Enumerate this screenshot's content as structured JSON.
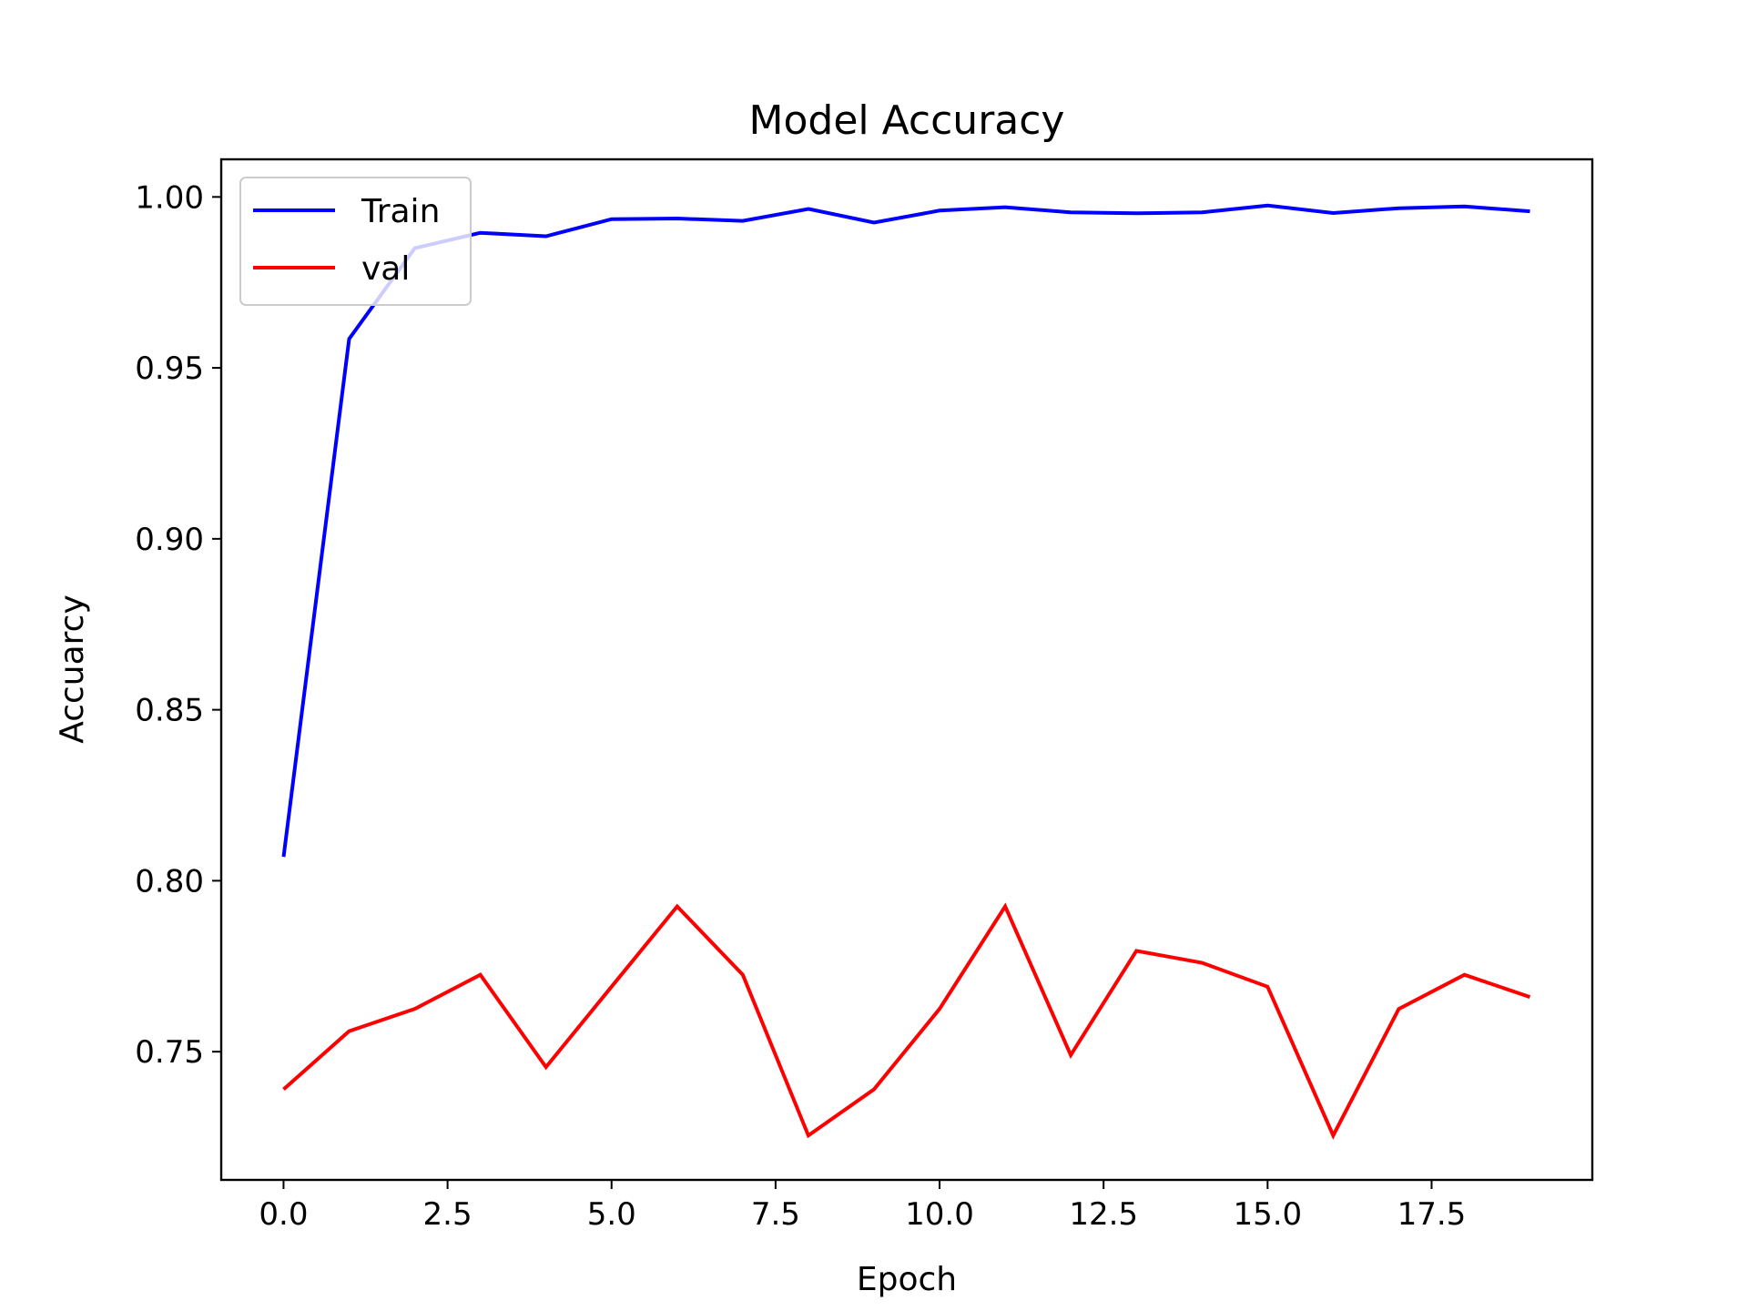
{
  "chart_data": {
    "type": "line",
    "title": "Model Accuracy",
    "xlabel": "Epoch",
    "ylabel": "Accuarcy",
    "x": [
      0,
      1,
      2,
      3,
      4,
      5,
      6,
      7,
      8,
      9,
      10,
      11,
      12,
      13,
      14,
      15,
      16,
      17,
      18,
      19
    ],
    "xlim": [
      -0.95,
      19.95
    ],
    "ylim": [
      0.7125,
      1.011
    ],
    "xticks": [
      "0.0",
      "2.5",
      "5.0",
      "7.5",
      "10.0",
      "12.5",
      "15.0",
      "17.5"
    ],
    "yticks": [
      "0.75",
      "0.80",
      "0.85",
      "0.90",
      "0.95",
      "1.00"
    ],
    "grid": false,
    "legend_position": "top-left",
    "series": [
      {
        "name": "Train",
        "color": "#0000ff",
        "values": [
          0.807,
          0.9585,
          0.985,
          0.9895,
          0.9885,
          0.9935,
          0.9937,
          0.993,
          0.9965,
          0.9925,
          0.996,
          0.997,
          0.9955,
          0.9952,
          0.9955,
          0.9975,
          0.9953,
          0.9967,
          0.9972,
          0.9958
        ]
      },
      {
        "name": "val",
        "color": "#ff0000",
        "values": [
          0.739,
          0.756,
          0.7625,
          0.7725,
          0.7455,
          0.769,
          0.7925,
          0.7725,
          0.7255,
          0.739,
          0.7625,
          0.7925,
          0.749,
          0.7795,
          0.776,
          0.769,
          0.7255,
          0.7625,
          0.7725,
          0.766
        ]
      }
    ]
  }
}
